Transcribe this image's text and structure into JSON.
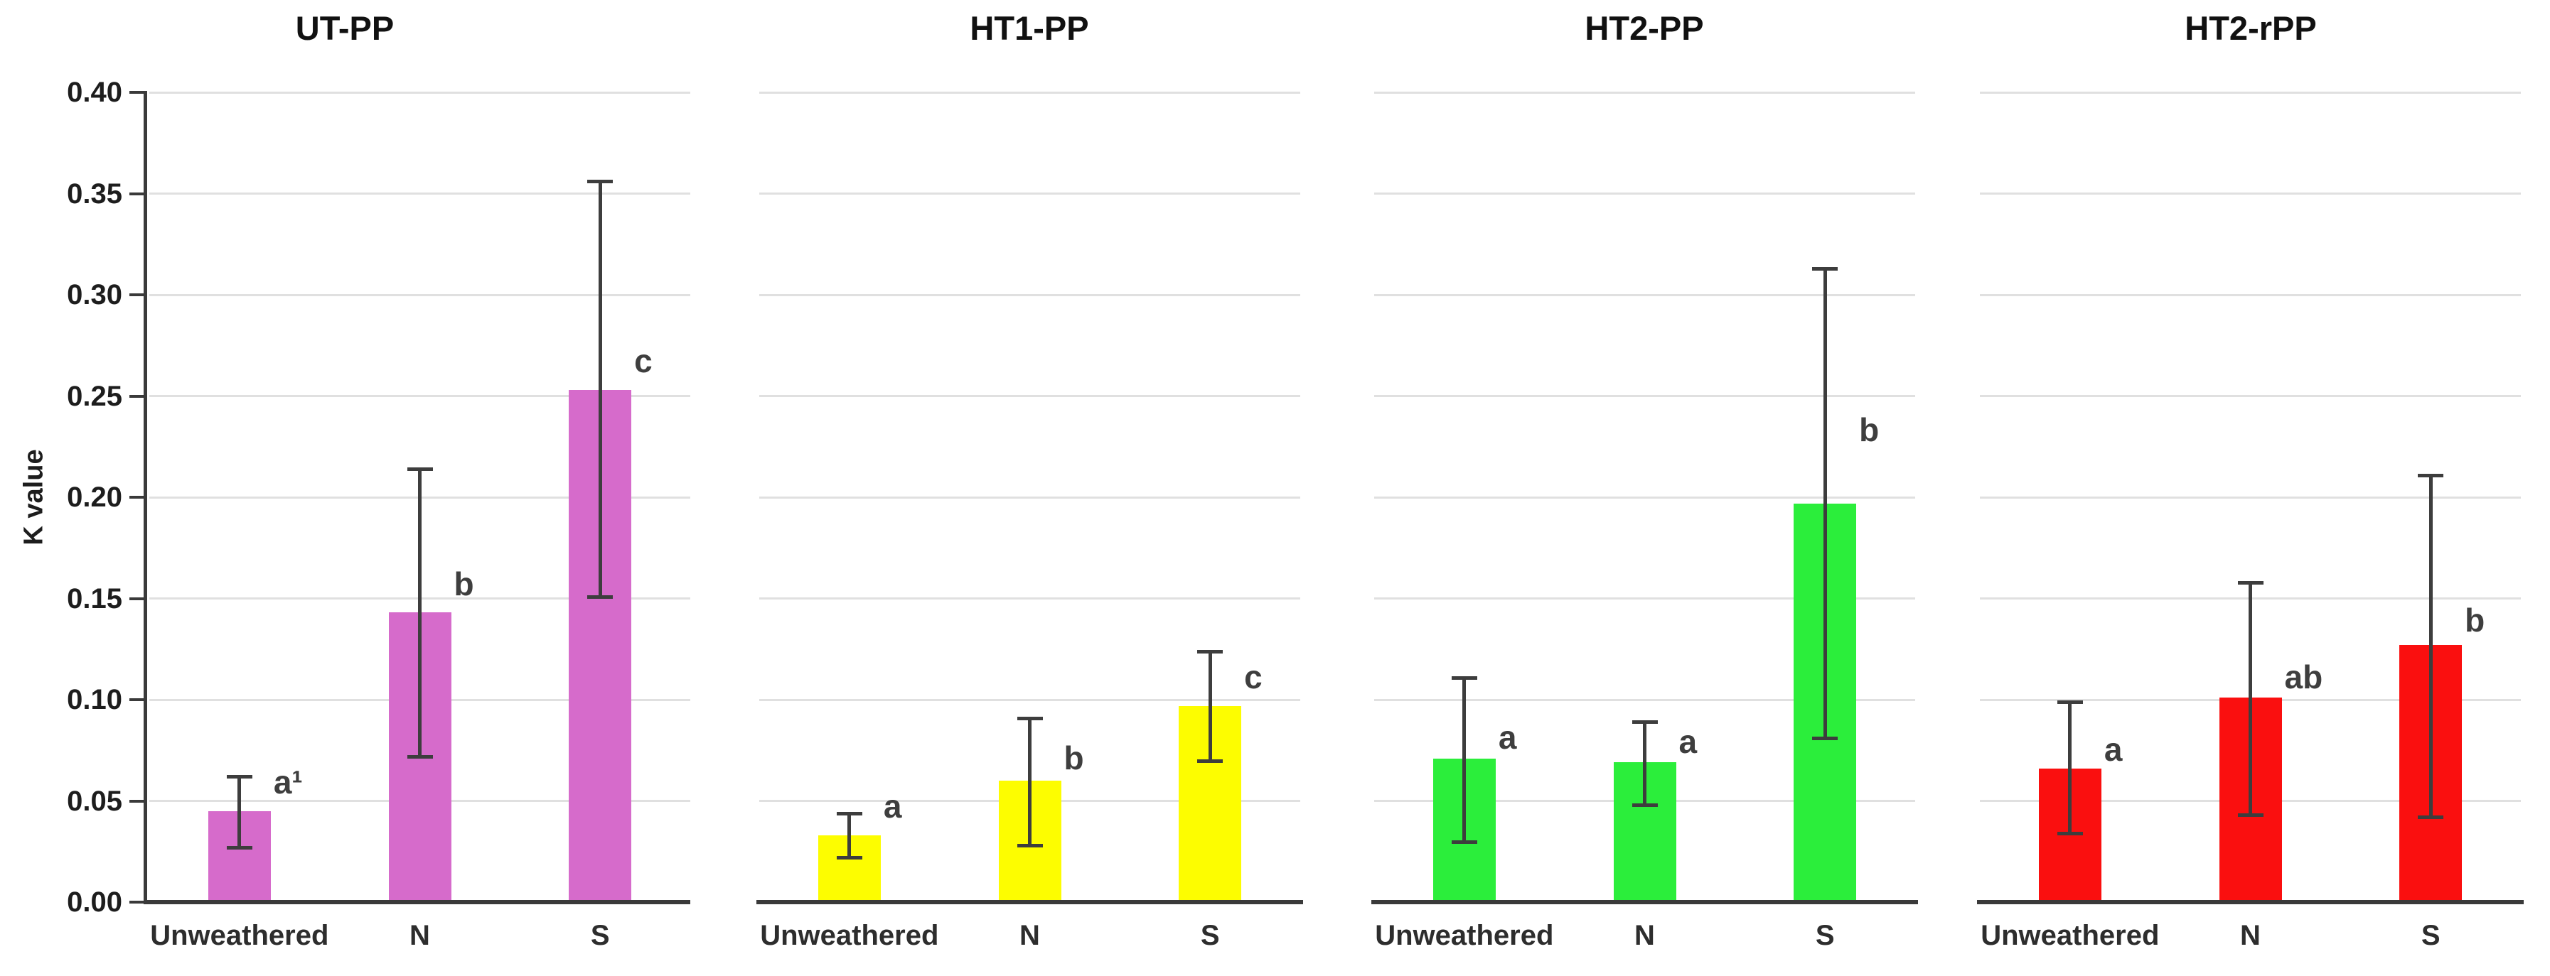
{
  "figure": {
    "y_axis": {
      "label": "K value",
      "ticks": [
        "0.00",
        "0.05",
        "0.10",
        "0.15",
        "0.20",
        "0.25",
        "0.30",
        "0.35",
        "0.40"
      ],
      "min": 0.0,
      "max": 0.4
    },
    "categories": [
      "Unweathered",
      "N",
      "S"
    ]
  },
  "chart_data": [
    {
      "type": "bar",
      "title": "UT-PP",
      "color": "#d66bcb",
      "categories": [
        "Unweathered",
        "N",
        "S"
      ],
      "values": [
        0.045,
        0.143,
        0.253
      ],
      "error_low": [
        0.027,
        0.072,
        0.151
      ],
      "error_high": [
        0.062,
        0.214,
        0.356
      ],
      "sig_letters": [
        "a¹",
        "b",
        "c"
      ],
      "sig_letter_y": [
        0.052,
        0.15,
        0.26
      ],
      "xlabel": "",
      "ylabel": "K value",
      "ylim": [
        0.0,
        0.4
      ],
      "grid": true,
      "legend": "none"
    },
    {
      "type": "bar",
      "title": "HT1-PP",
      "color": "#fdfd00",
      "categories": [
        "Unweathered",
        "N",
        "S"
      ],
      "values": [
        0.033,
        0.06,
        0.097
      ],
      "error_low": [
        0.022,
        0.028,
        0.07
      ],
      "error_high": [
        0.044,
        0.091,
        0.124
      ],
      "sig_letters": [
        "a",
        "b",
        "c"
      ],
      "sig_letter_y": [
        0.04,
        0.064,
        0.104
      ],
      "xlabel": "",
      "ylabel": "",
      "ylim": [
        0.0,
        0.4
      ],
      "grid": true,
      "legend": "none"
    },
    {
      "type": "bar",
      "title": "HT2-PP",
      "color": "#2bee3b",
      "categories": [
        "Unweathered",
        "N",
        "S"
      ],
      "values": [
        0.071,
        0.069,
        0.197
      ],
      "error_low": [
        0.03,
        0.048,
        0.081
      ],
      "error_high": [
        0.111,
        0.089,
        0.313
      ],
      "sig_letters": [
        "a",
        "a",
        "b"
      ],
      "sig_letter_y": [
        0.074,
        0.072,
        0.226
      ],
      "xlabel": "",
      "ylabel": "",
      "ylim": [
        0.0,
        0.4
      ],
      "grid": true,
      "legend": "none"
    },
    {
      "type": "bar",
      "title": "HT2-rPP",
      "color": "#fa0f0f",
      "categories": [
        "Unweathered",
        "N",
        "S"
      ],
      "values": [
        0.066,
        0.101,
        0.127
      ],
      "error_low": [
        0.034,
        0.043,
        0.042
      ],
      "error_high": [
        0.099,
        0.158,
        0.211
      ],
      "sig_letters": [
        "a",
        "ab",
        "b"
      ],
      "sig_letter_y": [
        0.068,
        0.104,
        0.132
      ],
      "xlabel": "",
      "ylabel": "",
      "ylim": [
        0.0,
        0.4
      ],
      "grid": true,
      "legend": "none"
    }
  ]
}
